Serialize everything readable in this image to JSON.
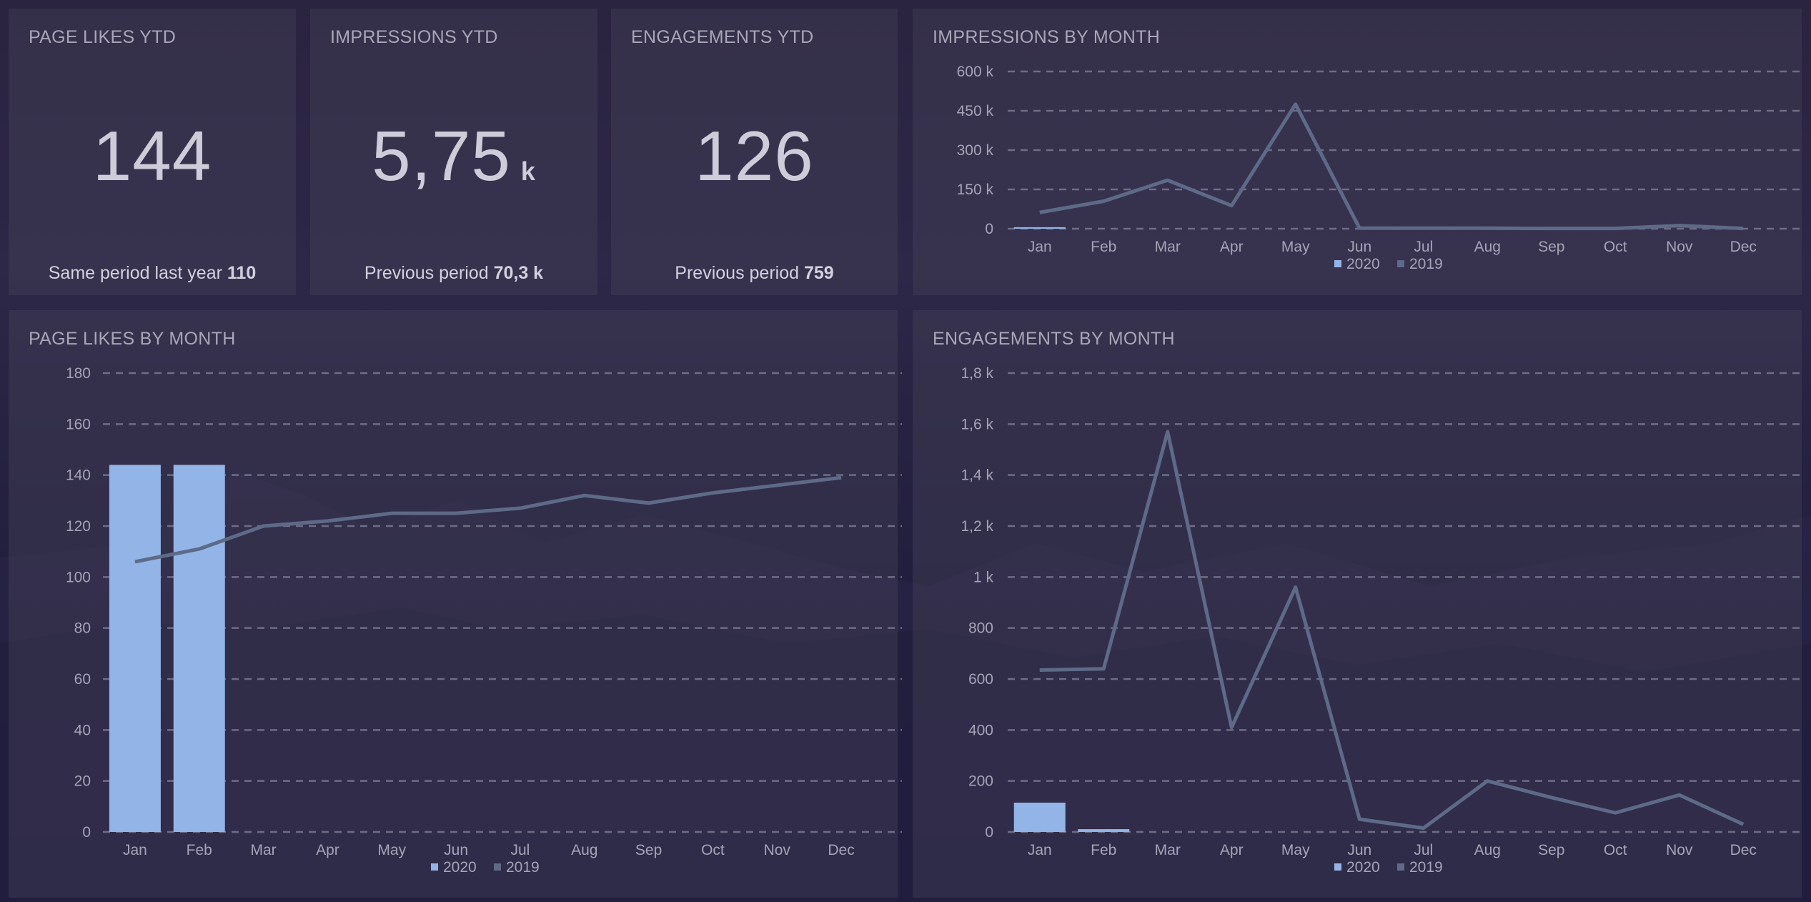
{
  "kpis": {
    "page_likes": {
      "title": "PAGE LIKES YTD",
      "value": "144",
      "unit": "",
      "compare_label": "Same period last year",
      "compare_value": "110"
    },
    "impressions": {
      "title": "IMPRESSIONS YTD",
      "value": "5,75",
      "unit": "k",
      "compare_label": "Previous period",
      "compare_value": "70,3 k"
    },
    "engagements": {
      "title": "ENGAGEMENTS YTD",
      "value": "126",
      "unit": "",
      "compare_label": "Previous period",
      "compare_value": "759"
    }
  },
  "colors": {
    "series_2020": "#93b4e6",
    "series_2019": "#5d6a88",
    "grid": "#6f6d86",
    "axis_text": "#a6a3b8"
  },
  "chart_data": [
    {
      "id": "impressions",
      "type": "bar",
      "title": "IMPRESSIONS BY MONTH",
      "categories": [
        "Jan",
        "Feb",
        "Mar",
        "Apr",
        "May",
        "Jun",
        "Jul",
        "Aug",
        "Sep",
        "Oct",
        "Nov",
        "Dec"
      ],
      "yticks": [
        0,
        150000,
        300000,
        450000,
        600000
      ],
      "ytick_labels": [
        "0",
        "150 k",
        "300 k",
        "450 k",
        "600 k"
      ],
      "ylim": [
        0,
        600000
      ],
      "series": [
        {
          "name": "2020",
          "kind": "bar",
          "values": [
            5750,
            null,
            null,
            null,
            null,
            null,
            null,
            null,
            null,
            null,
            null,
            null
          ]
        },
        {
          "name": "2019",
          "kind": "line",
          "values": [
            62000,
            105000,
            185000,
            88000,
            475000,
            2000,
            2000,
            2000,
            1000,
            1000,
            12000,
            1000
          ]
        }
      ],
      "legend": "bottom-center"
    },
    {
      "id": "likes",
      "type": "bar",
      "title": "PAGE LIKES BY MONTH",
      "categories": [
        "Jan",
        "Feb",
        "Mar",
        "Apr",
        "May",
        "Jun",
        "Jul",
        "Aug",
        "Sep",
        "Oct",
        "Nov",
        "Dec"
      ],
      "yticks": [
        0,
        20,
        40,
        60,
        80,
        100,
        120,
        140,
        160,
        180
      ],
      "ytick_labels": [
        "0",
        "20",
        "40",
        "60",
        "80",
        "100",
        "120",
        "140",
        "160",
        "180"
      ],
      "ylim": [
        0,
        180
      ],
      "series": [
        {
          "name": "2020",
          "kind": "bar",
          "values": [
            144,
            144,
            null,
            null,
            null,
            null,
            null,
            null,
            null,
            null,
            null,
            null
          ]
        },
        {
          "name": "2019",
          "kind": "line",
          "values": [
            106,
            111,
            120,
            122,
            125,
            125,
            127,
            132,
            129,
            133,
            136,
            139
          ]
        }
      ],
      "legend": "bottom-center"
    },
    {
      "id": "engagements",
      "type": "bar",
      "title": "ENGAGEMENTS BY MONTH",
      "categories": [
        "Jan",
        "Feb",
        "Mar",
        "Apr",
        "May",
        "Jun",
        "Jul",
        "Aug",
        "Sep",
        "Oct",
        "Nov",
        "Dec"
      ],
      "yticks": [
        0,
        200,
        400,
        600,
        800,
        1000,
        1200,
        1400,
        1600,
        1800
      ],
      "ytick_labels": [
        "0",
        "200",
        "400",
        "600",
        "800",
        "1 k",
        "1,2 k",
        "1,4 k",
        "1,6 k",
        "1,8 k"
      ],
      "ylim": [
        0,
        1800
      ],
      "series": [
        {
          "name": "2020",
          "kind": "bar",
          "values": [
            115,
            11,
            null,
            null,
            null,
            null,
            null,
            null,
            null,
            null,
            null,
            null
          ]
        },
        {
          "name": "2019",
          "kind": "line",
          "values": [
            635,
            640,
            1570,
            410,
            960,
            50,
            15,
            200,
            135,
            75,
            145,
            30
          ]
        }
      ],
      "legend": "bottom-center"
    }
  ]
}
